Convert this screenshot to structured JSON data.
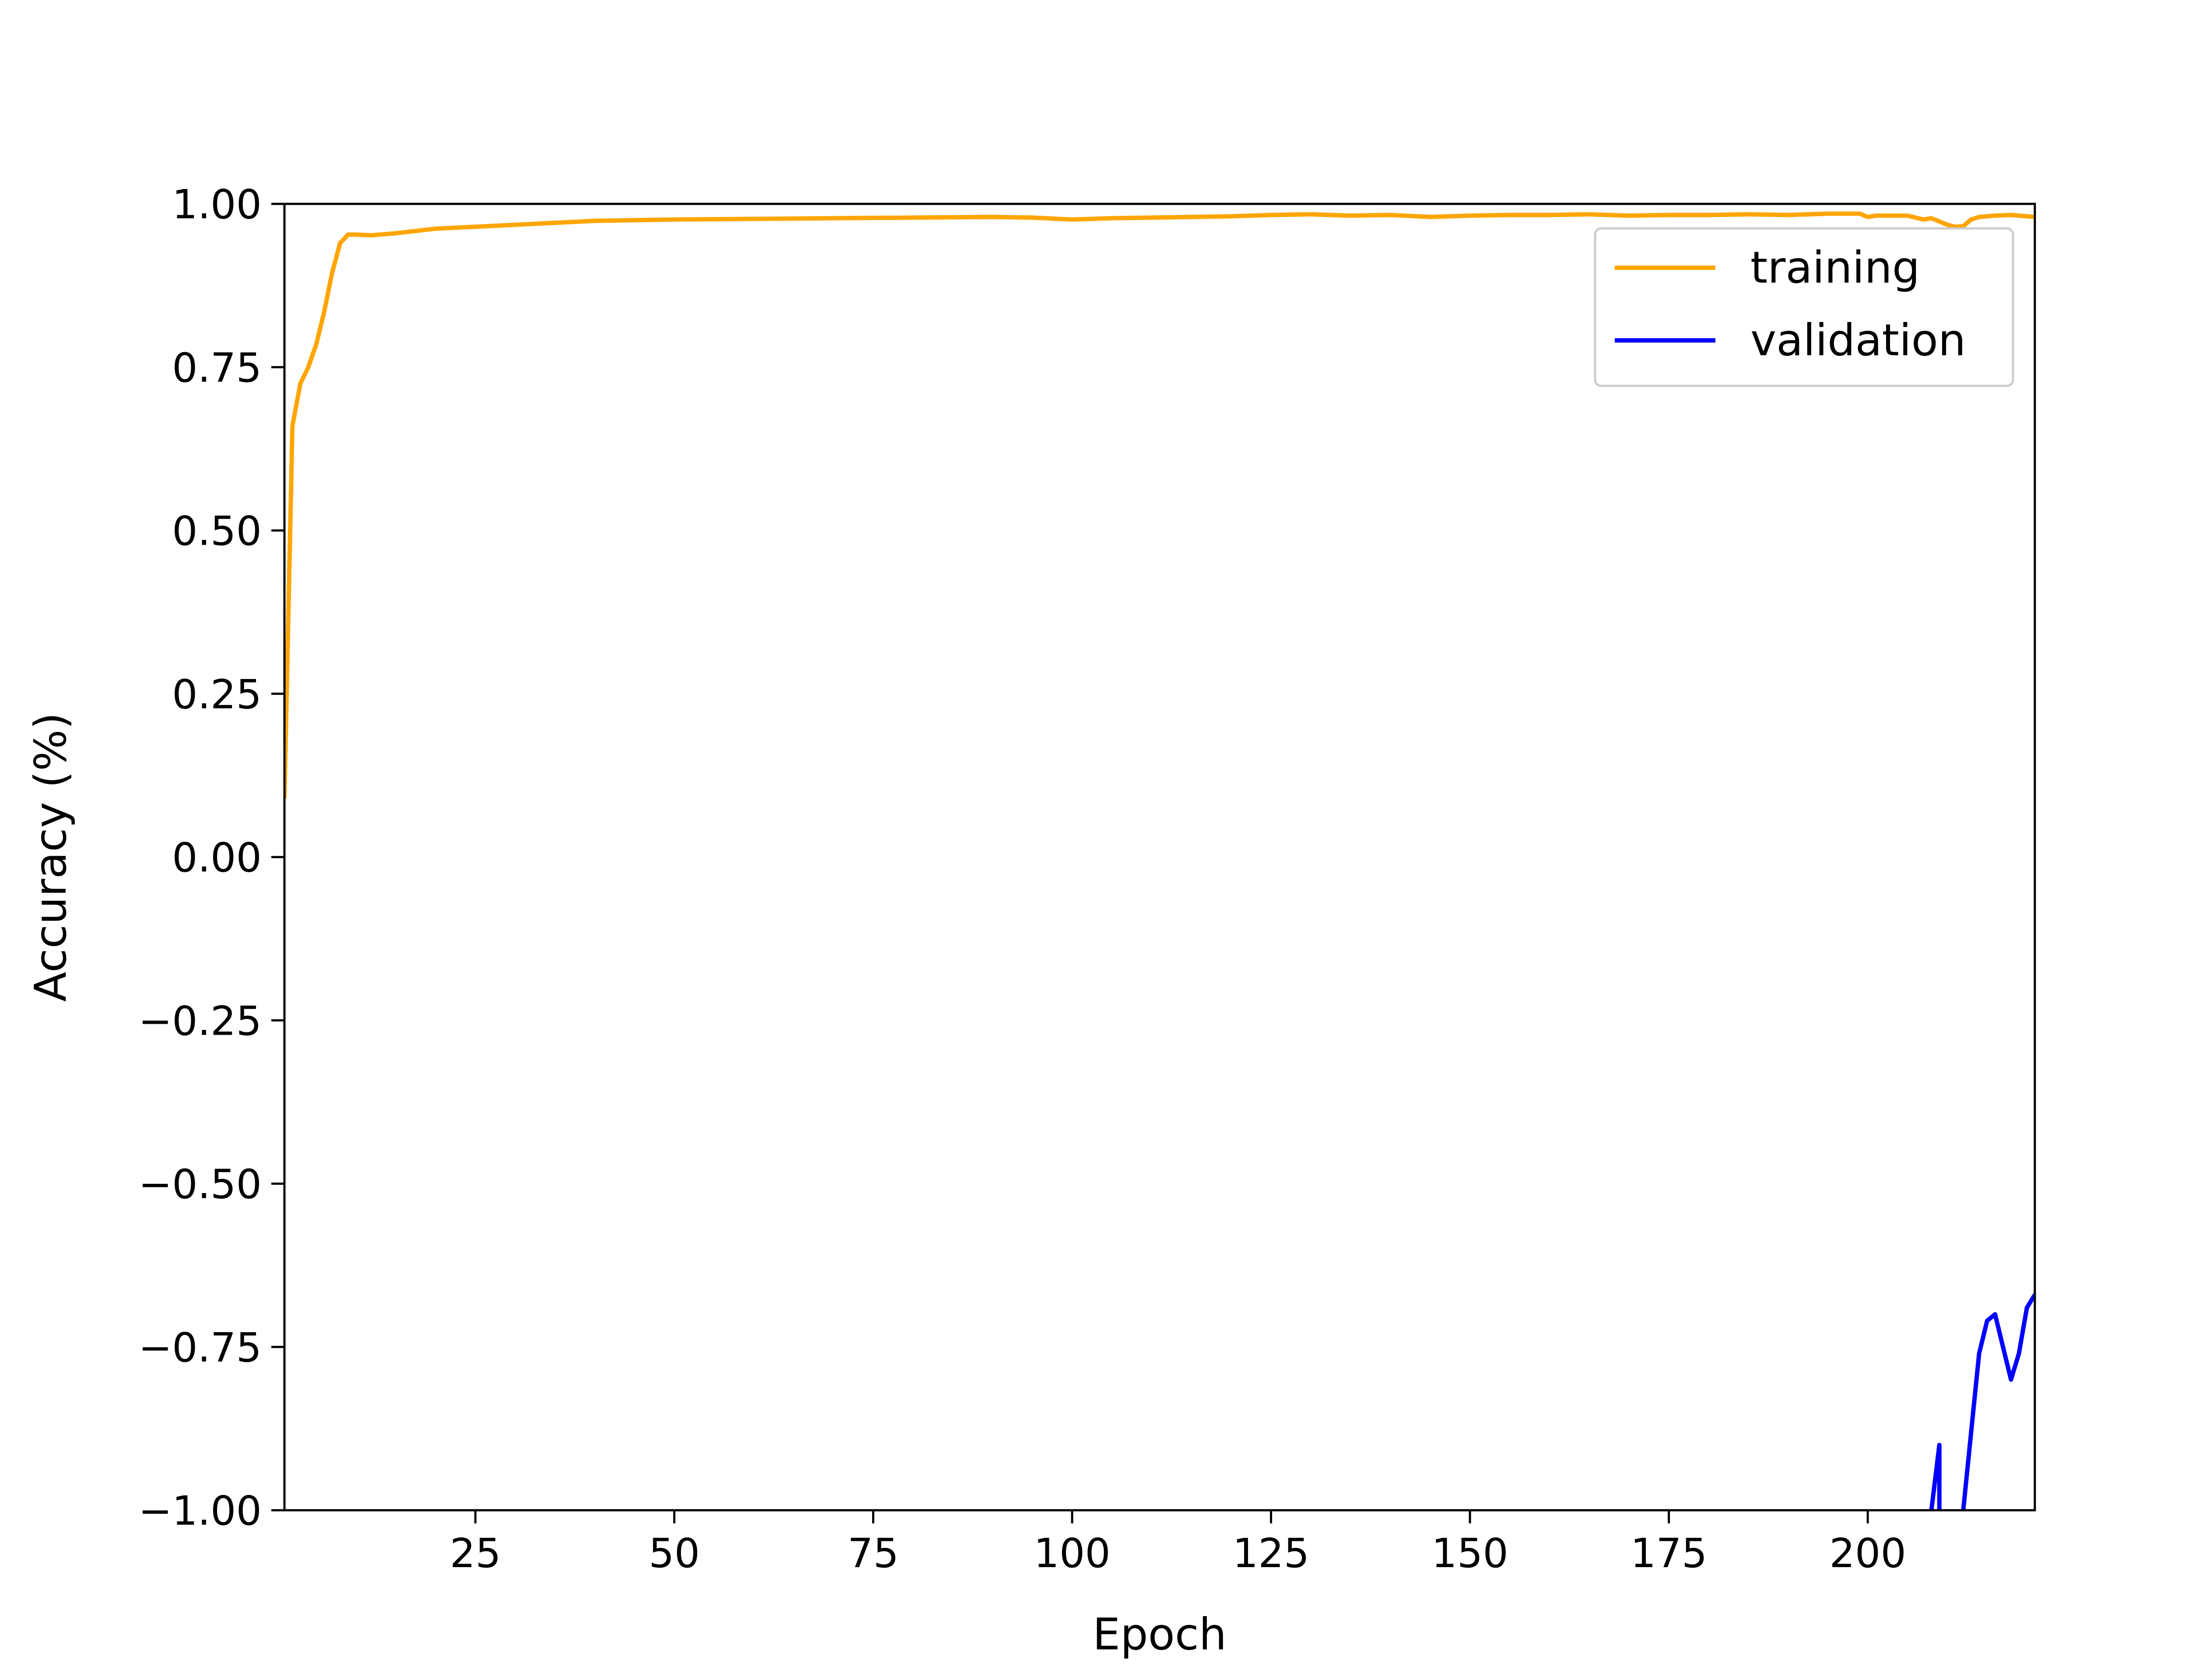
{
  "chart_data": {
    "type": "line",
    "title": "",
    "xlabel": "Epoch",
    "ylabel": "Accuracy (%)",
    "xlim": [
      1,
      221
    ],
    "ylim": [
      -1.0,
      1.0
    ],
    "xticks": [
      25,
      50,
      75,
      100,
      125,
      150,
      175,
      200
    ],
    "xtick_labels": [
      "25",
      "50",
      "75",
      "100",
      "125",
      "150",
      "175",
      "200"
    ],
    "yticks": [
      -1.0,
      -0.75,
      -0.5,
      -0.25,
      0.0,
      0.25,
      0.5,
      0.75,
      1.0
    ],
    "ytick_labels": [
      "−1.00",
      "−0.75",
      "−0.50",
      "−0.25",
      "0.00",
      "0.25",
      "0.50",
      "0.75",
      "1.00"
    ],
    "grid": false,
    "legend": "top-right",
    "series": [
      {
        "name": "training",
        "color": "#FFA500",
        "x": [
          1,
          2,
          3,
          4,
          5,
          6,
          7,
          8,
          9,
          10,
          12,
          15,
          20,
          25,
          30,
          40,
          50,
          60,
          70,
          80,
          90,
          95,
          100,
          105,
          110,
          115,
          120,
          125,
          130,
          135,
          140,
          145,
          150,
          155,
          160,
          165,
          170,
          175,
          180,
          185,
          190,
          195,
          199,
          200,
          201,
          205,
          207,
          208,
          210,
          211,
          212,
          213,
          214,
          216,
          218,
          220,
          221
        ],
        "y": [
          0.09,
          0.66,
          0.725,
          0.75,
          0.785,
          0.835,
          0.895,
          0.94,
          0.953,
          0.953,
          0.952,
          0.955,
          0.962,
          0.965,
          0.968,
          0.974,
          0.976,
          0.977,
          0.978,
          0.979,
          0.98,
          0.979,
          0.976,
          0.978,
          0.979,
          0.98,
          0.981,
          0.983,
          0.984,
          0.982,
          0.983,
          0.98,
          0.982,
          0.983,
          0.983,
          0.984,
          0.982,
          0.983,
          0.983,
          0.984,
          0.983,
          0.985,
          0.985,
          0.98,
          0.982,
          0.982,
          0.976,
          0.978,
          0.968,
          0.965,
          0.966,
          0.976,
          0.98,
          0.982,
          0.983,
          0.981,
          0.98
        ]
      },
      {
        "name": "validation",
        "color": "#0000FF",
        "x": [
          208,
          209,
          209,
          210,
          211,
          212,
          213,
          214,
          215,
          216,
          217,
          218,
          219,
          220,
          221
        ],
        "y": [
          -1.0,
          -0.9,
          -1.02,
          -1.1,
          -1.05,
          -1.0,
          -0.88,
          -0.76,
          -0.71,
          -0.7,
          -0.75,
          -0.8,
          -0.76,
          -0.69,
          -0.67
        ]
      }
    ]
  }
}
